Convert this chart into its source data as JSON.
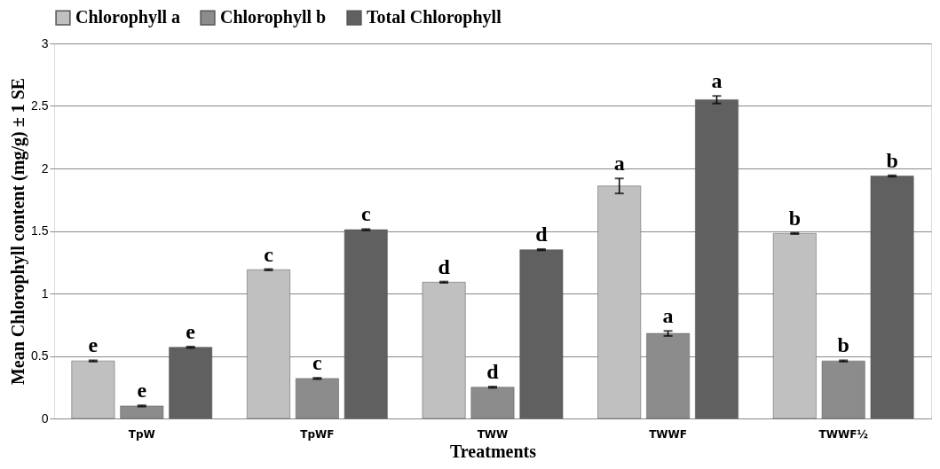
{
  "chart_data": {
    "type": "bar",
    "xlabel": "Treatments",
    "ylabel": "Mean Chlorophyll content (mg/g) ± 1 SE",
    "categories": [
      "TpW",
      "TpWF",
      "TWW",
      "TWWF",
      "TWWF½"
    ],
    "series": [
      {
        "name": "Chlorophyll a",
        "color": "#c0c0c0",
        "values": [
          0.46,
          1.19,
          1.09,
          1.86,
          1.48
        ],
        "errors": [
          0.005,
          0.005,
          0.005,
          0.06,
          0.005
        ],
        "value_labels": [
          "e",
          "c",
          "d",
          "a",
          "b"
        ]
      },
      {
        "name": "Chlorophyll b",
        "color": "#8c8c8c",
        "values": [
          0.1,
          0.32,
          0.25,
          0.68,
          0.46
        ],
        "errors": [
          0.005,
          0.005,
          0.005,
          0.02,
          0.005
        ],
        "value_labels": [
          "e",
          "c",
          "d",
          "a",
          "b"
        ]
      },
      {
        "name": "Total Chlorophyll",
        "color": "#606060",
        "values": [
          0.57,
          1.51,
          1.35,
          2.55,
          1.94
        ],
        "errors": [
          0.005,
          0.005,
          0.005,
          0.03,
          0.005
        ],
        "value_labels": [
          "e",
          "c",
          "d",
          "a",
          "b"
        ]
      }
    ],
    "ylim": [
      0,
      3
    ],
    "yticks": [
      0,
      0.5,
      1,
      1.5,
      2,
      2.5,
      3
    ],
    "grid": "y",
    "legend": "top"
  }
}
